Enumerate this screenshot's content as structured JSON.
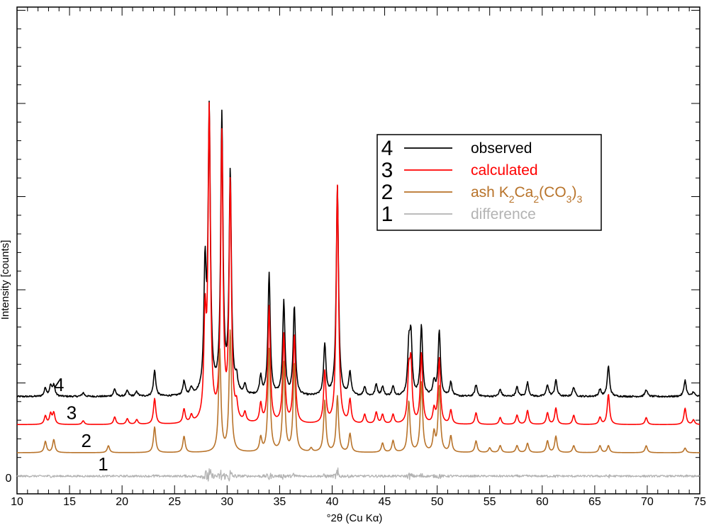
{
  "chart_data": {
    "type": "line",
    "xlabel": "°2θ (Cu Kα)",
    "ylabel": "Intensity [counts]",
    "xlim": [
      10,
      75
    ],
    "x_ticks": [
      10,
      15,
      20,
      25,
      30,
      35,
      40,
      45,
      50,
      55,
      60,
      65,
      70,
      75
    ],
    "y_tick_labels": [
      "0"
    ],
    "ylim": [
      -5,
      100
    ],
    "grid": false,
    "legend_position": "top-right",
    "peak_width": 0.13,
    "series": [
      {
        "name": "observed",
        "number": "4",
        "offset": 17,
        "color": "#000000",
        "peaks": [
          [
            12.7,
            1.8
          ],
          [
            13.2,
            2.2
          ],
          [
            13.5,
            2.4
          ],
          [
            16.3,
            0.8
          ],
          [
            19.3,
            1.6
          ],
          [
            20.5,
            1.2
          ],
          [
            21.4,
            1
          ],
          [
            23.1,
            5.5
          ],
          [
            25.9,
            3
          ],
          [
            26.6,
            1.5
          ],
          [
            27.9,
            26
          ],
          [
            28.3,
            60
          ],
          [
            29.5,
            59
          ],
          [
            30.3,
            47
          ],
          [
            30.9,
            3
          ],
          [
            31.7,
            2
          ],
          [
            33.2,
            4
          ],
          [
            34.0,
            26
          ],
          [
            35.4,
            20
          ],
          [
            36.4,
            19
          ],
          [
            39.3,
            11
          ],
          [
            40.5,
            45
          ],
          [
            41.7,
            5
          ],
          [
            43.1,
            2
          ],
          [
            44.2,
            2.5
          ],
          [
            44.8,
            2
          ],
          [
            45.8,
            2
          ],
          [
            47.3,
            10
          ],
          [
            47.5,
            12
          ],
          [
            48.5,
            15
          ],
          [
            49.7,
            3
          ],
          [
            50.2,
            14
          ],
          [
            51.3,
            3
          ],
          [
            53.7,
            2.5
          ],
          [
            56.0,
            1.5
          ],
          [
            57.6,
            2
          ],
          [
            58.6,
            3
          ],
          [
            60.5,
            2.5
          ],
          [
            61.3,
            3.5
          ],
          [
            63.0,
            2
          ],
          [
            65.5,
            1.5
          ],
          [
            66.3,
            6.5
          ],
          [
            69.9,
            1.5
          ],
          [
            73.6,
            3.5
          ],
          [
            74.4,
            1
          ]
        ]
      },
      {
        "name": "calculated",
        "number": "3",
        "offset": 11,
        "color": "#ff0000",
        "peaks": [
          [
            12.7,
            1.8
          ],
          [
            13.2,
            2.2
          ],
          [
            13.5,
            2.4
          ],
          [
            16.3,
            0.8
          ],
          [
            19.3,
            1.6
          ],
          [
            20.5,
            1.2
          ],
          [
            21.4,
            1
          ],
          [
            23.1,
            5.5
          ],
          [
            25.9,
            3
          ],
          [
            26.6,
            1.5
          ],
          [
            27.9,
            21
          ],
          [
            28.3,
            66
          ],
          [
            29.5,
            61
          ],
          [
            30.3,
            51
          ],
          [
            30.9,
            3
          ],
          [
            31.7,
            2
          ],
          [
            33.2,
            4
          ],
          [
            34.0,
            25
          ],
          [
            35.4,
            19
          ],
          [
            36.4,
            19
          ],
          [
            39.3,
            11
          ],
          [
            40.5,
            51
          ],
          [
            41.7,
            5
          ],
          [
            43.1,
            2
          ],
          [
            44.2,
            2.5
          ],
          [
            44.8,
            2
          ],
          [
            45.8,
            2
          ],
          [
            47.3,
            10
          ],
          [
            47.5,
            12
          ],
          [
            48.5,
            15
          ],
          [
            49.7,
            3
          ],
          [
            50.2,
            14
          ],
          [
            51.3,
            3
          ],
          [
            53.7,
            2.5
          ],
          [
            56.0,
            1.5
          ],
          [
            57.6,
            2
          ],
          [
            58.6,
            3
          ],
          [
            60.5,
            2.5
          ],
          [
            61.3,
            3.5
          ],
          [
            63.0,
            2
          ],
          [
            65.5,
            1.5
          ],
          [
            66.3,
            6.5
          ],
          [
            69.9,
            1.5
          ],
          [
            73.6,
            3.5
          ],
          [
            74.4,
            1
          ]
        ]
      },
      {
        "name": "ash K₂Ca₂(CO₃)₃",
        "number": "2",
        "offset": 5,
        "color": "#b8732a",
        "peaks": [
          [
            12.7,
            2.4
          ],
          [
            13.5,
            2.8
          ],
          [
            18.7,
            1.5
          ],
          [
            23.1,
            5.5
          ],
          [
            25.9,
            3.5
          ],
          [
            29.3,
            22
          ],
          [
            30.3,
            26
          ],
          [
            33.2,
            3
          ],
          [
            34.0,
            22
          ],
          [
            35.4,
            19
          ],
          [
            36.4,
            19
          ],
          [
            38.0,
            0.8
          ],
          [
            39.3,
            11
          ],
          [
            40.5,
            12
          ],
          [
            41.7,
            4
          ],
          [
            44.8,
            2
          ],
          [
            45.8,
            2.5
          ],
          [
            47.3,
            11
          ],
          [
            48.5,
            15
          ],
          [
            49.7,
            4
          ],
          [
            50.2,
            14
          ],
          [
            51.3,
            3.5
          ],
          [
            53.7,
            2.5
          ],
          [
            55.0,
            1
          ],
          [
            56.0,
            1.5
          ],
          [
            57.6,
            1.5
          ],
          [
            58.6,
            2
          ],
          [
            60.5,
            2.5
          ],
          [
            61.3,
            3.5
          ],
          [
            63.0,
            1.5
          ],
          [
            65.5,
            1.5
          ],
          [
            66.3,
            1.5
          ],
          [
            69.9,
            1.5
          ],
          [
            73.6,
            1
          ]
        ]
      },
      {
        "name": "difference",
        "number": "1",
        "offset": 0,
        "color": "#b3b3b3",
        "peaks": []
      }
    ],
    "legend": [
      {
        "number": "4",
        "label": "observed",
        "color": "#000000"
      },
      {
        "number": "3",
        "label": "calculated",
        "color": "#ff0000"
      },
      {
        "number": "2",
        "label_parts": [
          "ash K",
          "2",
          "Ca",
          "2",
          "(CO",
          "3",
          ")",
          "3"
        ],
        "color": "#b8732a"
      },
      {
        "number": "1",
        "label": "difference",
        "color": "#b3b3b3"
      }
    ]
  }
}
